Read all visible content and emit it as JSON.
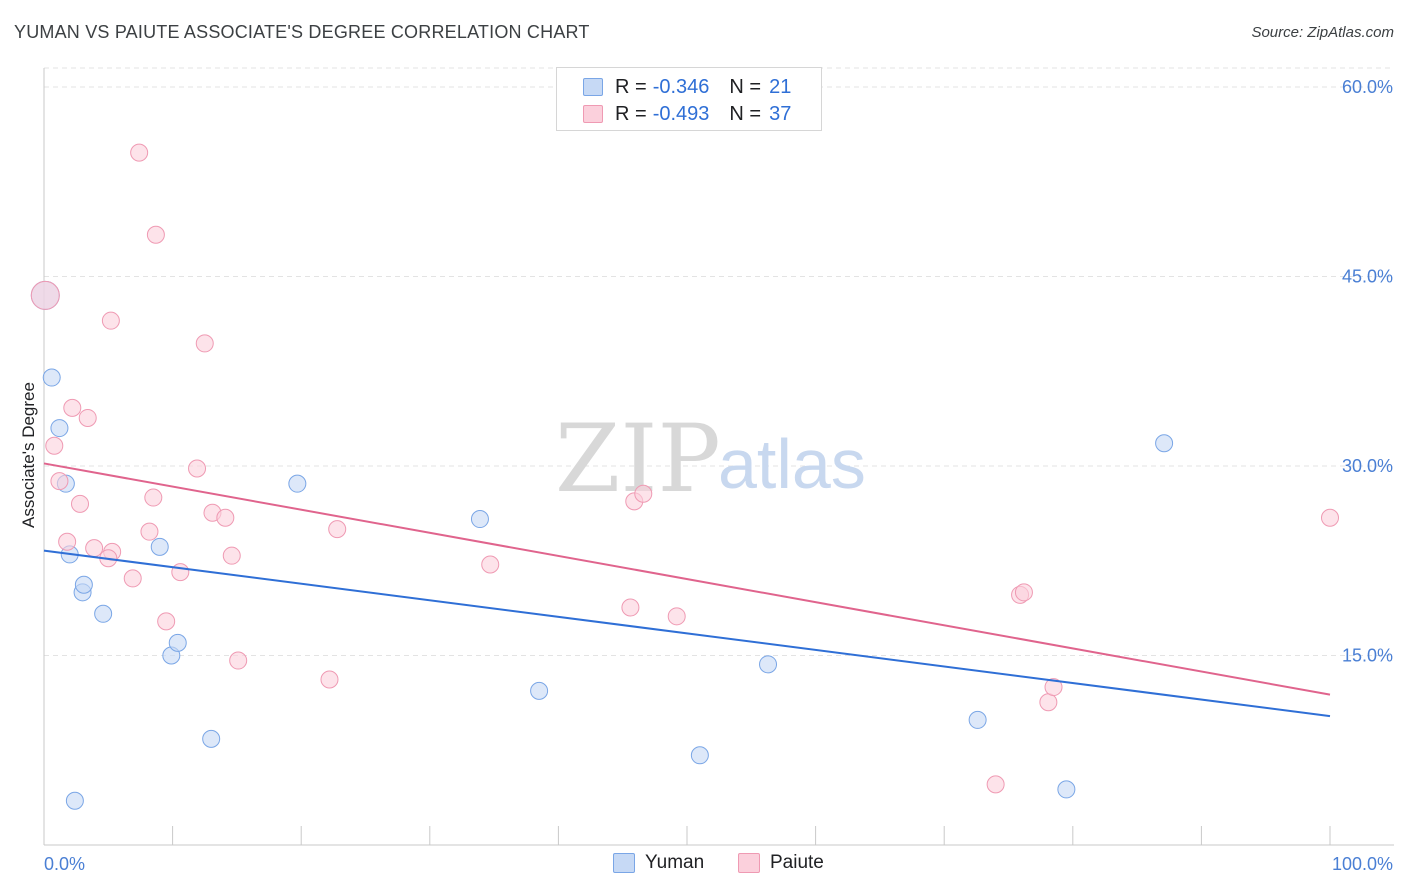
{
  "title": "YUMAN VS PAIUTE ASSOCIATE'S DEGREE CORRELATION CHART",
  "source": "Source: ZipAtlas.com",
  "watermark": {
    "zip": "ZIP",
    "atlas": "atlas"
  },
  "legend": {
    "rows": [
      {
        "r_label": "R =",
        "r_value": "-0.346",
        "n_label": "N =",
        "n_value": "21",
        "fill": "#c6d9f5",
        "stroke": "#7aa6e6"
      },
      {
        "r_label": "R =",
        "r_value": "-0.493",
        "n_label": "N =",
        "n_value": "37",
        "fill": "#fbd0dc",
        "stroke": "#ef9ab3"
      }
    ]
  },
  "bottom_legend": [
    {
      "label": "Yuman",
      "fill": "#c6d9f5",
      "stroke": "#7aa6e6"
    },
    {
      "label": "Paiute",
      "fill": "#fbd0dc",
      "stroke": "#ef9ab3"
    }
  ],
  "chart_data": {
    "type": "scatter",
    "ylabel": "Associate's Degree",
    "xlabel": "",
    "xlim": [
      0,
      100
    ],
    "ylim": [
      0,
      61.5
    ],
    "x_tick_labels": [
      "0.0%",
      "100.0%"
    ],
    "y_ticks": [
      15,
      30,
      45,
      60
    ],
    "y_tick_labels": [
      "15.0%",
      "30.0%",
      "45.0%",
      "60.0%"
    ],
    "grid": true,
    "series": [
      {
        "name": "Yuman",
        "color": "#2f6fd6",
        "fill": "#c6d9f5",
        "stroke": "#7aa6e6",
        "x": [
          0.6,
          1.2,
          1.7,
          2.0,
          2.4,
          3.0,
          3.1,
          4.6,
          9.0,
          9.9,
          10.4,
          13.0,
          19.7,
          33.9,
          38.5,
          51.0,
          56.3,
          72.6,
          79.5,
          87.1,
          0.1
        ],
        "y": [
          37.0,
          33.0,
          28.6,
          23.0,
          3.5,
          20.0,
          20.6,
          18.3,
          23.6,
          15.0,
          16.0,
          8.4,
          28.6,
          25.8,
          12.2,
          7.1,
          14.3,
          9.9,
          4.4,
          31.8,
          43.5
        ],
        "trend": {
          "x0": 0,
          "y0": 23.3,
          "x1": 100,
          "y1": 10.2
        }
      },
      {
        "name": "Paiute",
        "color": "#e0648d",
        "fill": "#fbd0dc",
        "stroke": "#ef9ab3",
        "x": [
          0.1,
          0.8,
          1.2,
          1.8,
          2.2,
          2.8,
          3.4,
          3.9,
          5.2,
          5.3,
          6.9,
          7.4,
          8.5,
          8.7,
          9.5,
          10.6,
          11.9,
          12.5,
          13.1,
          14.1,
          14.6,
          15.1,
          22.2,
          22.8,
          34.7,
          45.6,
          45.9,
          46.6,
          49.2,
          74.0,
          75.9,
          76.2,
          78.1,
          78.5,
          100.0,
          5.0,
          8.2
        ],
        "y": [
          43.5,
          31.6,
          28.8,
          24.0,
          34.6,
          27.0,
          33.8,
          23.5,
          41.5,
          23.2,
          21.1,
          54.8,
          27.5,
          48.3,
          17.7,
          21.6,
          29.8,
          39.7,
          26.3,
          25.9,
          22.9,
          14.6,
          13.1,
          25.0,
          22.2,
          18.8,
          27.2,
          27.8,
          18.1,
          4.8,
          19.8,
          20.0,
          11.3,
          12.5,
          25.9,
          22.7,
          24.8
        ],
        "trend": {
          "x0": 0,
          "y0": 30.2,
          "x1": 100,
          "y1": 11.9
        }
      }
    ]
  }
}
